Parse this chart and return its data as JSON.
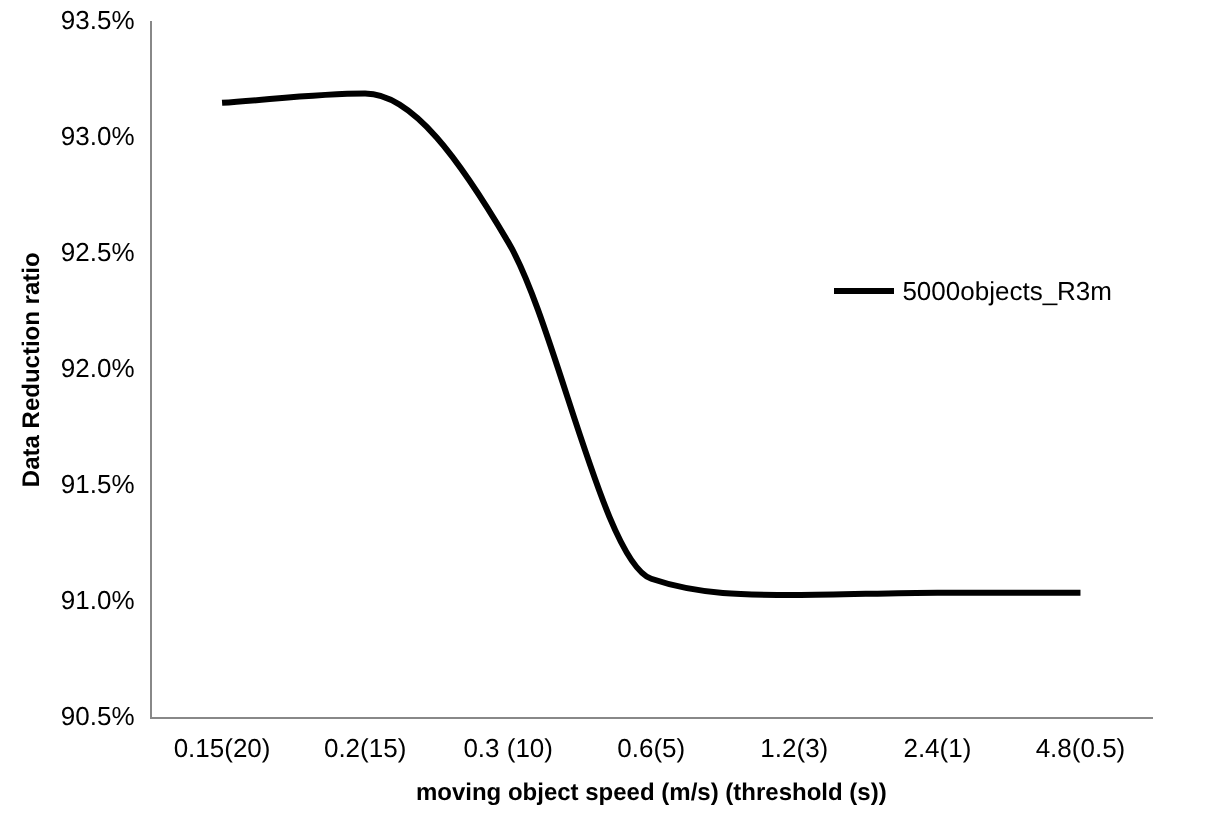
{
  "chart_data": {
    "type": "line",
    "xlabel": "moving object speed (m/s) (threshold (s))",
    "ylabel": "Data Reduction ratio",
    "categories": [
      "0.15(20)",
      "0.2(15)",
      "0.3 (10)",
      "0.6(5)",
      "1.2(3)",
      "2.4(1)",
      "4.8(0.5)"
    ],
    "series": [
      {
        "name": "5000objects_R3m",
        "color": "#000000",
        "values": [
          93.15,
          93.19,
          92.55,
          91.1,
          91.03,
          91.04,
          91.04
        ]
      }
    ],
    "ylim": [
      90.5,
      93.5
    ],
    "yticks": [
      {
        "value": 90.5,
        "label": "90.5%"
      },
      {
        "value": 91,
        "label": "91.0%"
      },
      {
        "value": 91.5,
        "label": "91.5%"
      },
      {
        "value": 92,
        "label": "92.0%"
      },
      {
        "value": 92.5,
        "label": "92.5%"
      },
      {
        "value": 93,
        "label": "93.0%"
      },
      {
        "value": 93.5,
        "label": "93.5%"
      }
    ],
    "grid": false,
    "legend": "right",
    "marker": "none",
    "line_style": "solid"
  }
}
